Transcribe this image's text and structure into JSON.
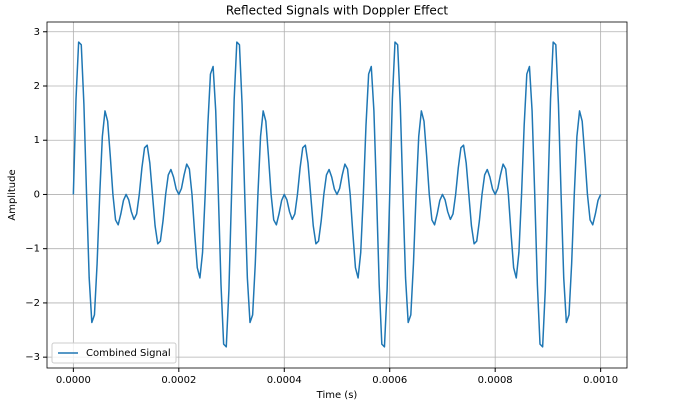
{
  "chart_data": {
    "type": "line",
    "title": "Reflected Signals with Doppler Effect",
    "xlabel": "Time (s)",
    "ylabel": "Amplitude",
    "x": [
      0,
      5e-06,
      1e-05,
      1.5e-05,
      2e-05,
      2.5e-05,
      3e-05,
      3.5e-05,
      4e-05,
      4.5e-05,
      5e-05,
      5.5e-05,
      6e-05,
      6.5e-05,
      7e-05,
      7.5e-05,
      8e-05,
      8.5e-05,
      9e-05,
      9.5e-05,
      0.0001,
      0.000105,
      0.00011,
      0.000115,
      0.00012,
      0.000125,
      0.00013,
      0.000135,
      0.00014,
      0.000145,
      0.00015,
      0.000155,
      0.00016,
      0.000165,
      0.00017,
      0.000175,
      0.00018,
      0.000185,
      0.00019,
      0.000195,
      0.0002,
      0.000205,
      0.00021,
      0.000215,
      0.00022,
      0.000225,
      0.00023,
      0.000235,
      0.00024,
      0.000245,
      0.00025,
      0.000255,
      0.00026,
      0.000265,
      0.00027,
      0.000275,
      0.00028,
      0.000285,
      0.00029,
      0.000295,
      0.0003,
      0.000305,
      0.00031,
      0.000315,
      0.00032,
      0.000325,
      0.00033,
      0.000335,
      0.00034,
      0.000345,
      0.00035,
      0.000355,
      0.00036,
      0.000365,
      0.00037,
      0.000375,
      0.00038,
      0.000385,
      0.00039,
      0.000395,
      0.0004,
      0.000405,
      0.00041,
      0.000415,
      0.00042,
      0.000425,
      0.00043,
      0.000435,
      0.00044,
      0.000445,
      0.00045,
      0.000455,
      0.00046,
      0.000465,
      0.00047,
      0.000475,
      0.00048,
      0.000485,
      0.00049,
      0.000495,
      0.0005,
      0.000505,
      0.00051,
      0.000515,
      0.00052,
      0.000525,
      0.00053,
      0.000535,
      0.00054,
      0.000545,
      0.00055,
      0.000555,
      0.00056,
      0.000565,
      0.00057,
      0.000575,
      0.00058,
      0.000585,
      0.00059,
      0.000595,
      0.0006,
      0.000605,
      0.00061,
      0.000615,
      0.00062,
      0.000625,
      0.00063,
      0.000635,
      0.00064,
      0.000645,
      0.00065,
      0.000655,
      0.00066,
      0.000665,
      0.00067,
      0.000675,
      0.00068,
      0.000685,
      0.00069,
      0.000695,
      0.0007,
      0.000705,
      0.00071,
      0.000715,
      0.00072,
      0.000725,
      0.00073,
      0.000735,
      0.00074,
      0.000745,
      0.00075,
      0.000755,
      0.00076,
      0.000765,
      0.00077,
      0.000775,
      0.00078,
      0.000785,
      0.00079,
      0.000795,
      0.0008,
      0.000805,
      0.00081,
      0.000815,
      0.00082,
      0.000825,
      0.00083,
      0.000835,
      0.00084,
      0.000845,
      0.00085,
      0.000855,
      0.00086,
      0.000865,
      0.00087,
      0.000875,
      0.00088,
      0.000885,
      0.00089,
      0.000895,
      0.0009,
      0.000905,
      0.00091,
      0.000915,
      0.00092,
      0.000925,
      0.00093,
      0.000935,
      0.00094,
      0.000945,
      0.00095,
      0.000955,
      0.00096,
      0.000965,
      0.00097,
      0.000975,
      0.00098,
      0.000985,
      0.00099,
      0.000995,
      0.001
    ],
    "series": [
      {
        "name": "Combined Signal",
        "color": "#1f77b4",
        "values": [
          0,
          1.76,
          2.81,
          2.76,
          1.66,
          0,
          -1.54,
          -2.36,
          -2.22,
          -1.28,
          0,
          1.07,
          1.54,
          1.35,
          0.71,
          0,
          -0.47,
          -0.56,
          -0.36,
          -0.11,
          0,
          -0.1,
          -0.32,
          -0.46,
          -0.36,
          0,
          0.49,
          0.86,
          0.91,
          0.58,
          0,
          -0.58,
          -0.91,
          -0.86,
          -0.49,
          0,
          0.36,
          0.46,
          0.32,
          0.1,
          0,
          0.11,
          0.36,
          0.56,
          0.47,
          0,
          -0.71,
          -1.35,
          -1.54,
          -1.07,
          0,
          1.28,
          2.22,
          2.36,
          1.54,
          0,
          -1.66,
          -2.76,
          -2.81,
          -1.76,
          0,
          1.76,
          2.81,
          2.76,
          1.66,
          0,
          -1.54,
          -2.36,
          -2.22,
          -1.28,
          0,
          1.07,
          1.54,
          1.35,
          0.71,
          0,
          -0.47,
          -0.56,
          -0.36,
          -0.11,
          0,
          -0.1,
          -0.32,
          -0.46,
          -0.36,
          0,
          0.49,
          0.86,
          0.91,
          0.58,
          0,
          -0.58,
          -0.91,
          -0.86,
          -0.49,
          0,
          0.36,
          0.46,
          0.32,
          0.1,
          0,
          0.11,
          0.36,
          0.56,
          0.47,
          0,
          -0.71,
          -1.35,
          -1.54,
          -1.07,
          0,
          1.28,
          2.22,
          2.36,
          1.54,
          0,
          -1.66,
          -2.76,
          -2.81,
          -1.76,
          0,
          1.76,
          2.81,
          2.76,
          1.66,
          0,
          -1.54,
          -2.36,
          -2.22,
          -1.28,
          0,
          1.07,
          1.54,
          1.35,
          0.71,
          0,
          -0.47,
          -0.56,
          -0.36,
          -0.11,
          0,
          -0.1,
          -0.32,
          -0.46,
          -0.36,
          0,
          0.49,
          0.86,
          0.91,
          0.58,
          0,
          -0.58,
          -0.91,
          -0.86,
          -0.49,
          0,
          0.36,
          0.46,
          0.32,
          0.1,
          0,
          0.11,
          0.36,
          0.56,
          0.47,
          0,
          -0.71,
          -1.35,
          -1.54,
          -1.07,
          0,
          1.28,
          2.22,
          2.36,
          1.54,
          0,
          -1.66,
          -2.76,
          -2.81,
          -1.76,
          0,
          1.76,
          2.81,
          2.76,
          1.66,
          0,
          -1.54,
          -2.36,
          -2.22,
          -1.28,
          0,
          1.07,
          1.54,
          1.35,
          0.71,
          0,
          -0.47,
          -0.56,
          -0.36,
          -0.11,
          0
        ]
      }
    ],
    "xlim": [
      -5e-05,
      0.00105
    ],
    "ylim": [
      -3.2,
      3.18
    ],
    "xticks": [
      {
        "value": 0,
        "label": "0.0000"
      },
      {
        "value": 0.0002,
        "label": "0.0002"
      },
      {
        "value": 0.0004,
        "label": "0.0004"
      },
      {
        "value": 0.0006,
        "label": "0.0006"
      },
      {
        "value": 0.0008,
        "label": "0.0008"
      },
      {
        "value": 0.001,
        "label": "0.0010"
      }
    ],
    "yticks": [
      {
        "value": -3,
        "label": "−3"
      },
      {
        "value": -2,
        "label": "−2"
      },
      {
        "value": -1,
        "label": "−1"
      },
      0,
      1,
      2,
      3
    ],
    "grid": true,
    "legend": "lower left"
  }
}
